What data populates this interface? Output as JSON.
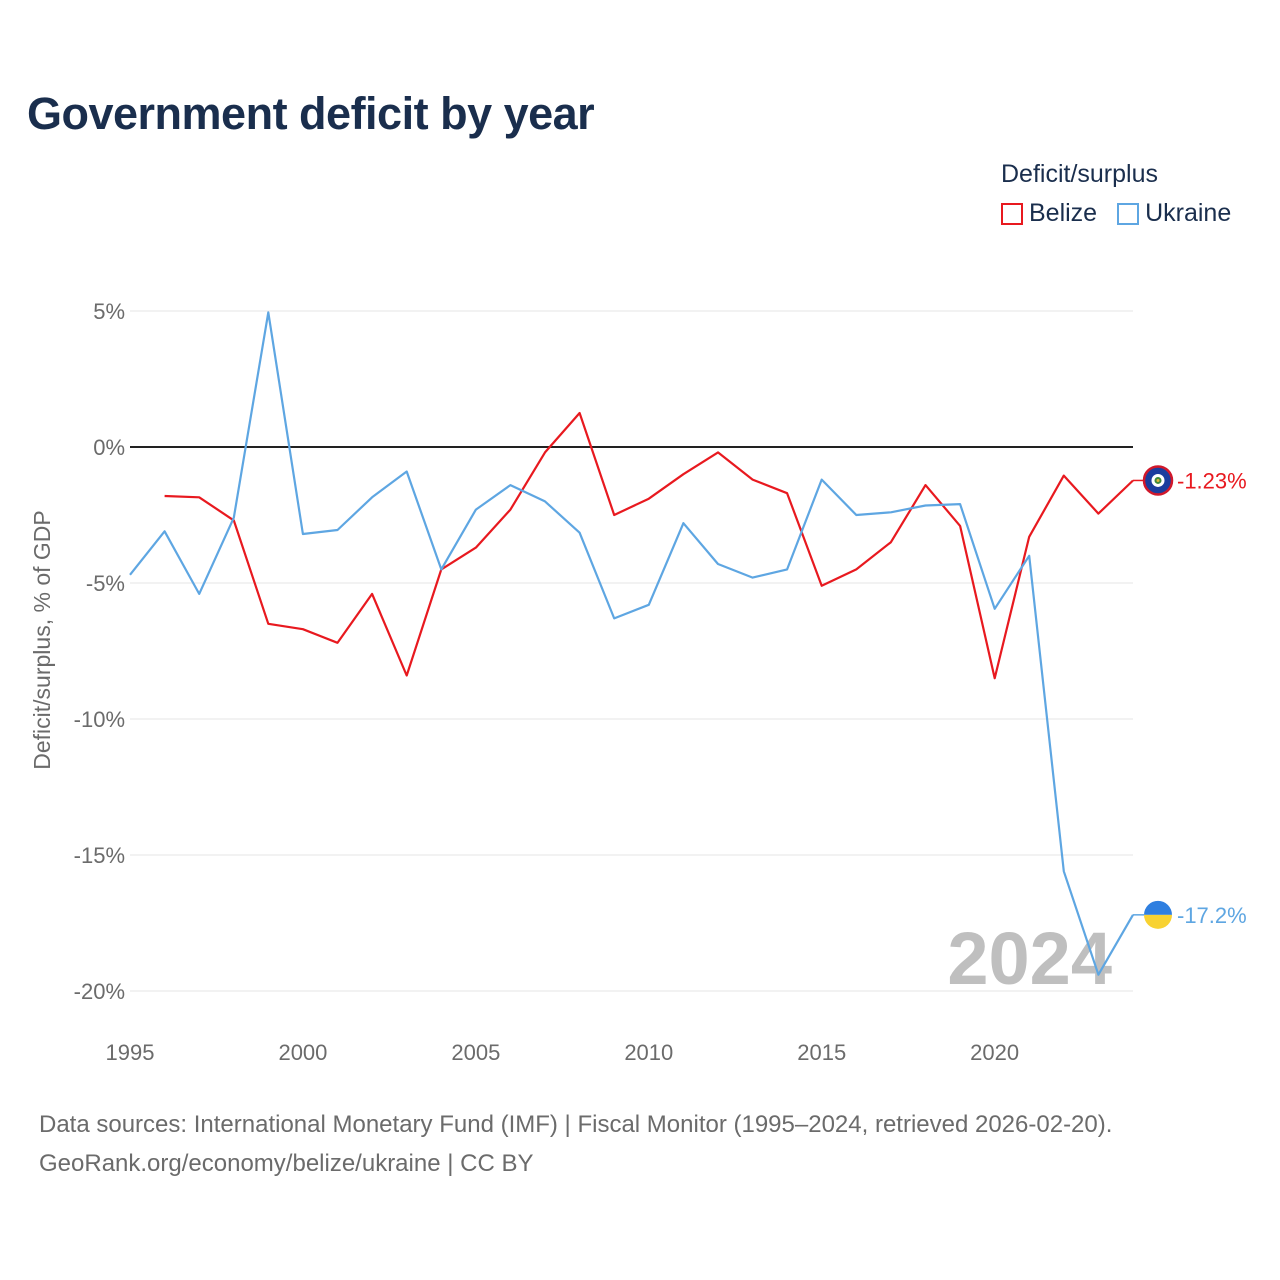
{
  "header": {
    "title": "Government deficit by year"
  },
  "legend": {
    "title": "Deficit/surplus",
    "items": [
      {
        "name": "Belize",
        "color": "#e8191f"
      },
      {
        "name": "Ukraine",
        "color": "#5ea6e2"
      }
    ]
  },
  "source": {
    "line1": "Data sources: International Monetary Fund (IMF) | Fiscal Monitor (1995–2024, retrieved 2026-02-20).",
    "line2": "GeoRank.org/economy/belize/ukraine | CC BY"
  },
  "chart_data": {
    "type": "line",
    "title": "Government deficit by year",
    "xlabel": "",
    "ylabel": "Deficit/surplus, % of GDP",
    "xlim": [
      1995,
      2024
    ],
    "ylim": [
      -20,
      5
    ],
    "x_ticks": [
      1995,
      2000,
      2005,
      2010,
      2015,
      2020
    ],
    "y_ticks": [
      5,
      0,
      -5,
      -10,
      -15,
      -20
    ],
    "y_tick_labels": [
      "5%",
      "0%",
      "-5%",
      "-10%",
      "-15%",
      "-20%"
    ],
    "zero_line": true,
    "year_watermark": "2024",
    "series": [
      {
        "name": "Belize",
        "color": "#e8191f",
        "x": [
          1996,
          1997,
          1998,
          1999,
          2000,
          2001,
          2002,
          2003,
          2004,
          2005,
          2006,
          2007,
          2008,
          2009,
          2010,
          2011,
          2012,
          2013,
          2014,
          2015,
          2016,
          2017,
          2018,
          2019,
          2020,
          2021,
          2022,
          2023,
          2024
        ],
        "values": [
          -1.8,
          -1.85,
          -2.7,
          -6.5,
          -6.7,
          -7.2,
          -5.4,
          -8.4,
          -4.5,
          -3.7,
          -2.3,
          -0.2,
          1.25,
          -2.5,
          -1.9,
          -1.0,
          -0.2,
          -1.2,
          -1.7,
          -5.1,
          -4.5,
          -3.5,
          -1.4,
          -2.9,
          -8.5,
          -3.3,
          -1.05,
          -2.45,
          -1.23
        ],
        "end_label": "-1.23%"
      },
      {
        "name": "Ukraine",
        "color": "#5ea6e2",
        "x": [
          1995,
          1996,
          1997,
          1998,
          1999,
          2000,
          2001,
          2002,
          2003,
          2004,
          2005,
          2006,
          2007,
          2008,
          2009,
          2010,
          2011,
          2012,
          2013,
          2014,
          2015,
          2016,
          2017,
          2018,
          2019,
          2020,
          2021,
          2022,
          2023,
          2024
        ],
        "values": [
          -4.7,
          -3.1,
          -5.4,
          -2.6,
          4.95,
          -3.2,
          -3.05,
          -1.85,
          -0.9,
          -4.5,
          -2.3,
          -1.4,
          -2.0,
          -3.15,
          -6.3,
          -5.8,
          -2.8,
          -4.3,
          -4.8,
          -4.5,
          -1.2,
          -2.5,
          -2.4,
          -2.15,
          -2.1,
          -5.95,
          -4.0,
          -15.6,
          -19.4,
          -17.2
        ],
        "end_label": "-17.2%"
      }
    ]
  }
}
